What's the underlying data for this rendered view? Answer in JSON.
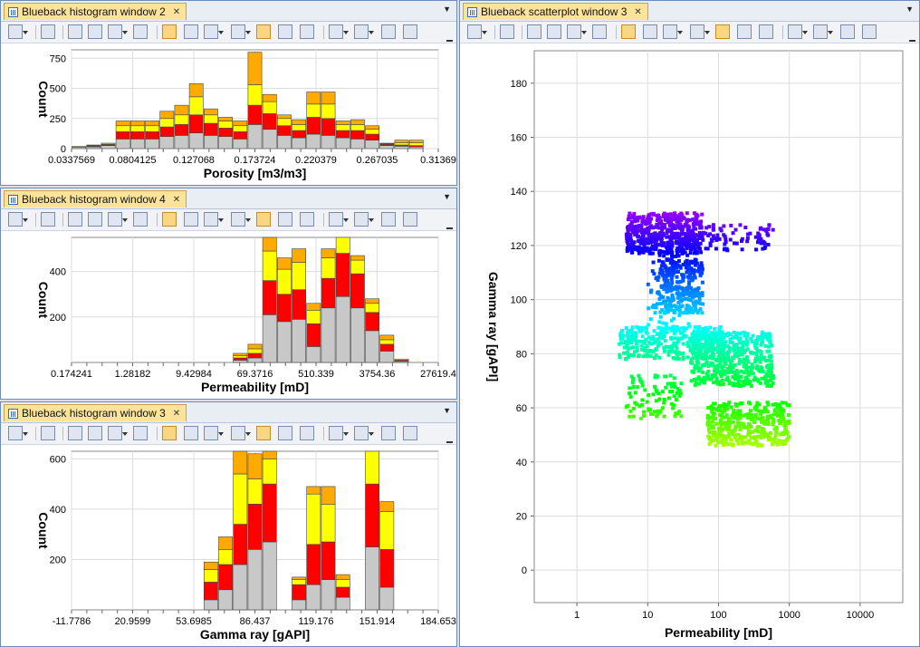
{
  "colors": {
    "gray": "#c8c8c8",
    "red": "#ff0000",
    "yellow": "#ffff00",
    "orange": "#ffaa00",
    "grid": "#dcdcdc"
  },
  "windows": {
    "hist_porosity": {
      "title": "Blueback histogram window 2"
    },
    "hist_perm": {
      "title": "Blueback histogram window 4"
    },
    "hist_gamma": {
      "title": "Blueback histogram window 3"
    },
    "scatter": {
      "title": "Blueback scatterplot window 3"
    }
  },
  "toolbar_icons": [
    "select-arrow-icon",
    "eye-icon",
    "zoom-window-icon",
    "zoom-fit-icon",
    "view-options-icon",
    "filter-icon",
    "grid-toggle-icon",
    "color-table-icon",
    "line-style-icon",
    "percent-icon",
    "link-icon",
    "noise-icon",
    "curve-icon",
    "legend-icon",
    "scatter-options-icon",
    "slider-icon",
    "export-icon"
  ],
  "chart_data": [
    {
      "type": "bar",
      "name": "porosity-histogram",
      "xlabel": "Porosity [m3/m3]",
      "ylabel": "Count",
      "xlim": [
        0.0337569,
        0.31369
      ],
      "ylim": [
        0,
        820
      ],
      "yticks": [
        0,
        250,
        500,
        750
      ],
      "xtick_labels": [
        "0.0337569",
        "0.0804125",
        "0.127068",
        "0.173724",
        "0.220379",
        "0.267035",
        "0.31369"
      ],
      "stack_order": [
        "gray",
        "red",
        "yellow",
        "orange"
      ],
      "bins": [
        [
          10,
          0,
          0,
          8
        ],
        [
          15,
          5,
          5,
          5
        ],
        [
          25,
          5,
          5,
          10
        ],
        [
          80,
          60,
          50,
          40
        ],
        [
          80,
          60,
          50,
          40
        ],
        [
          80,
          60,
          50,
          40
        ],
        [
          100,
          80,
          70,
          60
        ],
        [
          110,
          90,
          80,
          80
        ],
        [
          130,
          150,
          150,
          110
        ],
        [
          110,
          100,
          70,
          50
        ],
        [
          100,
          70,
          60,
          30
        ],
        [
          80,
          60,
          50,
          40
        ],
        [
          200,
          160,
          170,
          270
        ],
        [
          160,
          130,
          100,
          60
        ],
        [
          110,
          80,
          60,
          30
        ],
        [
          90,
          60,
          50,
          40
        ],
        [
          120,
          140,
          110,
          100
        ],
        [
          110,
          140,
          120,
          100
        ],
        [
          90,
          60,
          50,
          30
        ],
        [
          80,
          70,
          50,
          40
        ],
        [
          70,
          50,
          40,
          30
        ],
        [
          25,
          10,
          5,
          5
        ],
        [
          20,
          10,
          20,
          20
        ],
        [
          15,
          10,
          25,
          20
        ],
        [
          0,
          0,
          0,
          0
        ]
      ]
    },
    {
      "type": "bar",
      "name": "permeability-histogram",
      "xlabel": "Permeability [mD]",
      "ylabel": "Count",
      "log_x": true,
      "xlim": [
        0.174241,
        27619.4
      ],
      "ylim": [
        0,
        550
      ],
      "yticks": [
        200,
        400
      ],
      "xtick_labels": [
        "0.174241",
        "1.28182",
        "9.42984",
        "69.3716",
        "510.339",
        "3754.36",
        "27619.4"
      ],
      "stack_order": [
        "gray",
        "red",
        "yellow",
        "orange"
      ],
      "bins": [
        [
          0,
          0,
          0,
          0
        ],
        [
          0,
          0,
          0,
          0
        ],
        [
          0,
          0,
          0,
          0
        ],
        [
          0,
          0,
          0,
          0
        ],
        [
          0,
          0,
          0,
          0
        ],
        [
          0,
          0,
          0,
          0
        ],
        [
          0,
          0,
          0,
          0
        ],
        [
          0,
          0,
          0,
          0
        ],
        [
          0,
          0,
          0,
          0
        ],
        [
          0,
          0,
          0,
          0
        ],
        [
          0,
          0,
          0,
          0
        ],
        [
          10,
          10,
          10,
          10
        ],
        [
          20,
          20,
          20,
          20
        ],
        [
          210,
          150,
          130,
          60
        ],
        [
          180,
          120,
          110,
          50
        ],
        [
          190,
          130,
          120,
          60
        ],
        [
          70,
          100,
          60,
          30
        ],
        [
          240,
          130,
          90,
          40
        ],
        [
          290,
          190,
          100,
          40
        ],
        [
          240,
          150,
          60,
          20
        ],
        [
          140,
          80,
          40,
          20
        ],
        [
          50,
          30,
          20,
          20
        ],
        [
          5,
          5,
          5,
          0
        ],
        [
          0,
          0,
          0,
          0
        ],
        [
          0,
          0,
          0,
          0
        ]
      ]
    },
    {
      "type": "bar",
      "name": "gamma-ray-histogram",
      "xlabel": "Gamma ray [gAPI]",
      "ylabel": "Count",
      "xlim": [
        -11.7786,
        184.653
      ],
      "ylim": [
        0,
        630
      ],
      "yticks": [
        200,
        400,
        600
      ],
      "xtick_labels": [
        "-11.7786",
        "20.9599",
        "53.6985",
        "86.437",
        "119.176",
        "151.914",
        "184.653"
      ],
      "stack_order": [
        "gray",
        "red",
        "yellow",
        "orange"
      ],
      "bins": [
        [
          0,
          0,
          0,
          0
        ],
        [
          0,
          0,
          0,
          0
        ],
        [
          0,
          0,
          0,
          0
        ],
        [
          0,
          0,
          0,
          0
        ],
        [
          0,
          0,
          0,
          0
        ],
        [
          0,
          0,
          0,
          0
        ],
        [
          0,
          0,
          0,
          0
        ],
        [
          0,
          0,
          0,
          0
        ],
        [
          0,
          0,
          0,
          0
        ],
        [
          40,
          70,
          50,
          30
        ],
        [
          80,
          100,
          60,
          50
        ],
        [
          180,
          160,
          200,
          160
        ],
        [
          240,
          180,
          100,
          100
        ],
        [
          270,
          230,
          100,
          70
        ],
        [
          0,
          0,
          0,
          0
        ],
        [
          40,
          60,
          20,
          10
        ],
        [
          100,
          160,
          200,
          30
        ],
        [
          120,
          150,
          150,
          70
        ],
        [
          50,
          40,
          30,
          20
        ],
        [
          0,
          0,
          0,
          0
        ],
        [
          250,
          250,
          250,
          90
        ],
        [
          90,
          150,
          150,
          40
        ],
        [
          0,
          0,
          0,
          0
        ],
        [
          0,
          0,
          0,
          0
        ],
        [
          0,
          0,
          0,
          0
        ]
      ]
    },
    {
      "type": "scatter",
      "name": "gamma-vs-permeability",
      "xlabel": "Permeability [mD]",
      "ylabel": "Gamma ray [gAPI]",
      "log_x": true,
      "xlim": [
        0.25,
        40000
      ],
      "ylim": [
        -12,
        192
      ],
      "xtick_labels": [
        "1",
        "10",
        "100",
        "1000",
        "10000"
      ],
      "yticks": [
        0,
        20,
        40,
        60,
        80,
        100,
        120,
        140,
        160,
        180
      ],
      "color_scale": "hue from purple (high gamma) to yellow-green (low gamma)",
      "clusters": [
        {
          "xmin": 5,
          "xmax": 60,
          "ymin": 117,
          "ymax": 132,
          "n": 420
        },
        {
          "xmin": 5,
          "xmax": 600,
          "ymin": 118,
          "ymax": 128,
          "n": 160
        },
        {
          "xmin": 15,
          "xmax": 60,
          "ymin": 95,
          "ymax": 115,
          "n": 260
        },
        {
          "xmin": 10,
          "xmax": 40,
          "ymin": 88,
          "ymax": 118,
          "n": 90
        },
        {
          "xmin": 4,
          "xmax": 120,
          "ymin": 78,
          "ymax": 90,
          "n": 300
        },
        {
          "xmin": 40,
          "xmax": 600,
          "ymin": 68,
          "ymax": 88,
          "n": 460
        },
        {
          "xmin": 5,
          "xmax": 30,
          "ymin": 56,
          "ymax": 72,
          "n": 90
        },
        {
          "xmin": 70,
          "xmax": 1000,
          "ymin": 46,
          "ymax": 62,
          "n": 380
        }
      ]
    }
  ]
}
